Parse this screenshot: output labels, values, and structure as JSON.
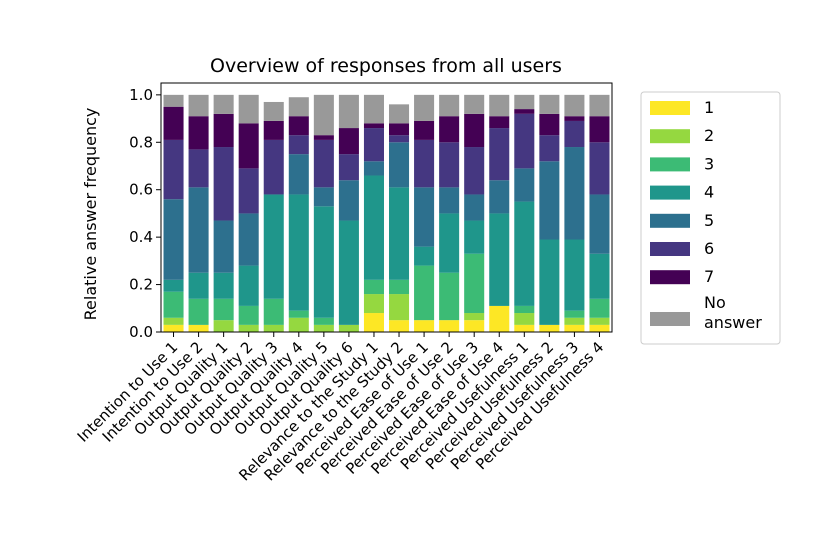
{
  "chart_data": {
    "type": "bar",
    "stacked": true,
    "title": "Overview of responses from all users",
    "xlabel": "",
    "ylabel": "Relative answer frequency",
    "ylim": [
      0,
      1.05
    ],
    "yticks": [
      "0.0",
      "0.2",
      "0.4",
      "0.6",
      "0.8",
      "1.0"
    ],
    "categories": [
      "Intention to Use 1",
      "Intention to Use 2",
      "Output Quality 1",
      "Output Quality 2",
      "Output Quality 3",
      "Output Quality 4",
      "Output Quality 5",
      "Output Quality 6",
      "Relevance to the Study 1",
      "Relevance to the Study 2",
      "Perceived Ease of Use 1",
      "Perceived Ease of Use 2",
      "Perceived Ease of Use 3",
      "Perceived Ease of Use 4",
      "Perceived Usefulness 1",
      "Perceived Usefulness 2",
      "Perceived Usefulness 3",
      "Perceived Usefulness 4"
    ],
    "series": [
      {
        "name": "1",
        "color": "#fde725",
        "values": [
          0.03,
          0.03,
          0.0,
          0.0,
          0.0,
          0.0,
          0.0,
          0.0,
          0.08,
          0.05,
          0.05,
          0.05,
          0.05,
          0.11,
          0.03,
          0.03,
          0.03,
          0.03
        ]
      },
      {
        "name": "2",
        "color": "#95d840",
        "values": [
          0.03,
          0.0,
          0.05,
          0.03,
          0.03,
          0.06,
          0.03,
          0.03,
          0.08,
          0.11,
          0.0,
          0.0,
          0.03,
          0.0,
          0.05,
          0.0,
          0.03,
          0.03
        ]
      },
      {
        "name": "3",
        "color": "#3cbb75",
        "values": [
          0.11,
          0.11,
          0.09,
          0.08,
          0.11,
          0.03,
          0.03,
          0.0,
          0.06,
          0.06,
          0.23,
          0.2,
          0.25,
          0.0,
          0.03,
          0.0,
          0.03,
          0.08
        ]
      },
      {
        "name": "4",
        "color": "#1f968b",
        "values": [
          0.05,
          0.11,
          0.11,
          0.17,
          0.44,
          0.49,
          0.47,
          0.44,
          0.44,
          0.39,
          0.08,
          0.25,
          0.14,
          0.39,
          0.44,
          0.36,
          0.3,
          0.19
        ]
      },
      {
        "name": "5",
        "color": "#2d708e",
        "values": [
          0.34,
          0.36,
          0.22,
          0.22,
          0.0,
          0.17,
          0.08,
          0.17,
          0.06,
          0.19,
          0.25,
          0.11,
          0.11,
          0.14,
          0.14,
          0.33,
          0.39,
          0.25
        ]
      },
      {
        "name": "6",
        "color": "#453781",
        "values": [
          0.25,
          0.16,
          0.31,
          0.19,
          0.23,
          0.08,
          0.2,
          0.11,
          0.14,
          0.03,
          0.2,
          0.19,
          0.2,
          0.22,
          0.23,
          0.11,
          0.11,
          0.22
        ]
      },
      {
        "name": "7",
        "color": "#440154",
        "values": [
          0.14,
          0.14,
          0.14,
          0.19,
          0.08,
          0.08,
          0.02,
          0.11,
          0.02,
          0.05,
          0.08,
          0.11,
          0.14,
          0.05,
          0.02,
          0.09,
          0.02,
          0.11
        ]
      },
      {
        "name": "No answer",
        "color": "#999999",
        "values": [
          0.05,
          0.09,
          0.08,
          0.12,
          0.08,
          0.08,
          0.17,
          0.14,
          0.12,
          0.08,
          0.11,
          0.09,
          0.08,
          0.09,
          0.06,
          0.08,
          0.09,
          0.09
        ]
      }
    ],
    "legend": {
      "placement": "right-outside"
    },
    "grid": false
  }
}
